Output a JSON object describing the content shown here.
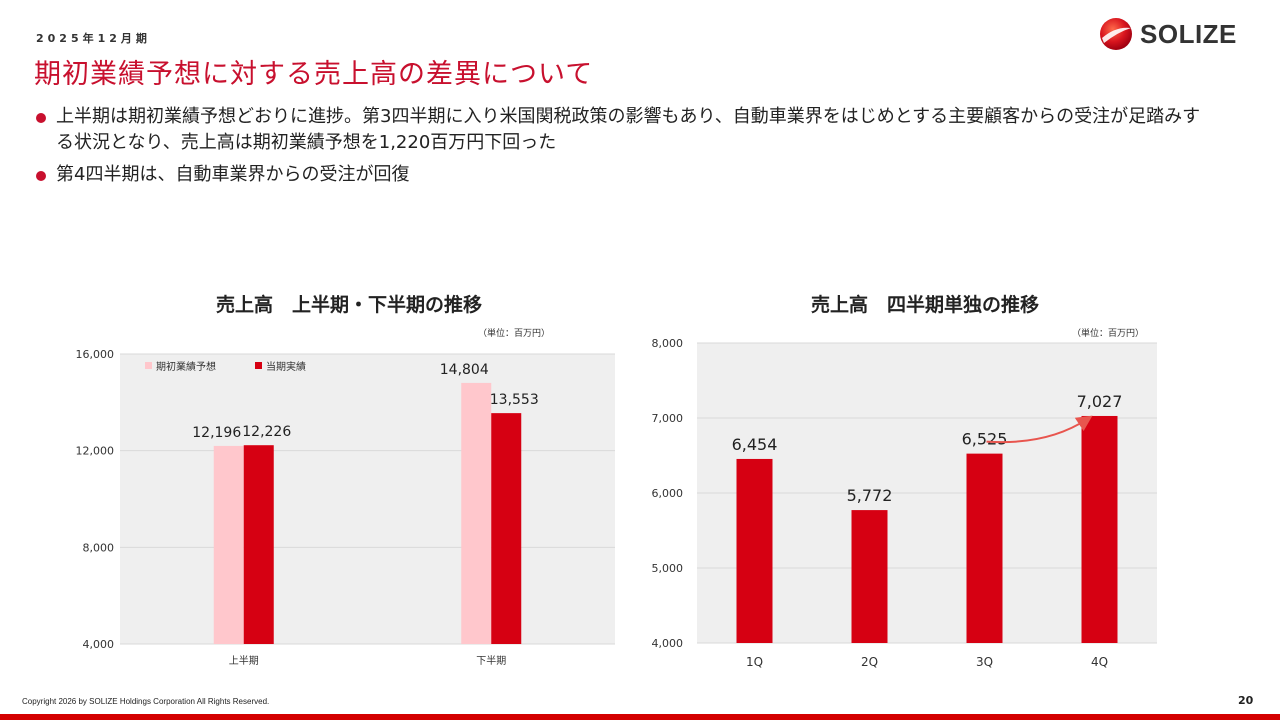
{
  "header": {
    "period": "2025年12月期",
    "title": "期初業績予想に対する売上高の差異について",
    "logo_text": "SOLIZE"
  },
  "bullets": [
    "上半期は期初業績予想どおりに進捗。第3四半期に入り米国関税政策の影響もあり、自動車業界をはじめとする主要顧客からの受注が足踏みする状況となり、売上高は期初業績予想を1,220百万円下回った",
    "第4四半期は、自動車業界からの受注が回復"
  ],
  "footer": {
    "copyright": "Copyright 2026 by SOLIZE Holdings Corporation All Rights Reserved.",
    "page": "20"
  },
  "colors": {
    "accent": "#c8102e",
    "forecast_bar": "#ffc7cc",
    "actual_bar": "#d60012",
    "plot_bg": "#efefef"
  },
  "chart_data": [
    {
      "type": "bar",
      "title": "売上高　上半期・下半期の推移",
      "unit": "（単位：百万円）",
      "categories": [
        "上半期",
        "下半期"
      ],
      "series": [
        {
          "name": "期初業績予想",
          "values": [
            12196,
            14804
          ],
          "labels": [
            "12,196",
            "14,804"
          ]
        },
        {
          "name": "当期実績",
          "values": [
            12226,
            13553
          ],
          "labels": [
            "12,226",
            "13,553"
          ]
        }
      ],
      "ylim": [
        4000,
        16000
      ],
      "yticks": [
        4000,
        8000,
        12000,
        16000
      ],
      "ytick_labels": [
        "4,000",
        "8,000",
        "12,000",
        "16,000"
      ],
      "legend": "top-left",
      "grid": true
    },
    {
      "type": "bar",
      "title": "売上高　四半期単独の推移",
      "unit": "（単位：百万円）",
      "categories": [
        "1Q",
        "2Q",
        "3Q",
        "4Q"
      ],
      "series": [
        {
          "values": [
            6454,
            5772,
            6525,
            7027
          ],
          "labels": [
            "6,454",
            "5,772",
            "6,525",
            "7,027"
          ]
        }
      ],
      "ylim": [
        4000,
        8000
      ],
      "yticks": [
        4000,
        5000,
        6000,
        7000,
        8000
      ],
      "ytick_labels": [
        "4,000",
        "5,000",
        "6,000",
        "7,000",
        "8,000"
      ],
      "annotation": "arrow from 3Q to 4Q",
      "grid": true
    }
  ]
}
